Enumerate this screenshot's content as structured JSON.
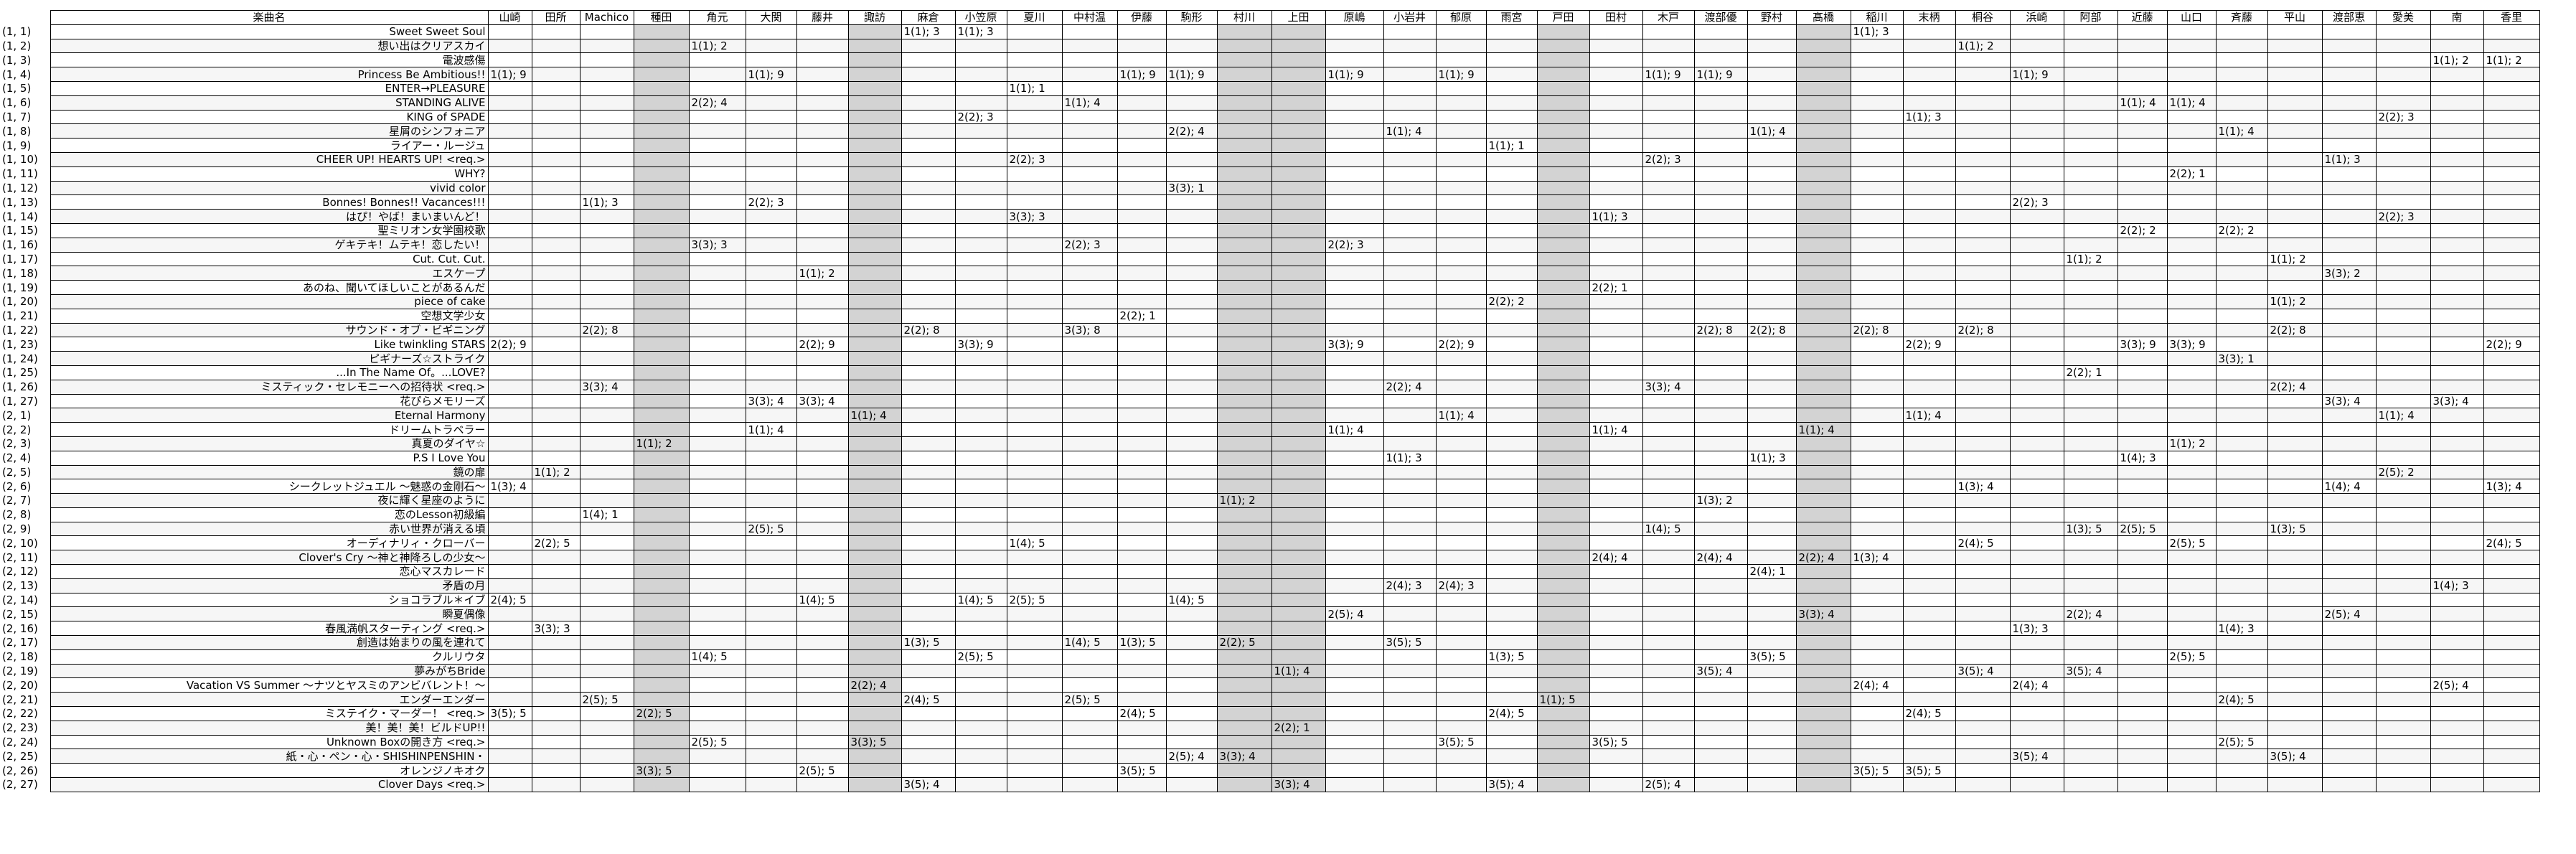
{
  "table": {
    "song_header": "楽曲名",
    "columns": [
      "山崎",
      "田所",
      "Machico",
      "種田",
      "角元",
      "大関",
      "藤井",
      "諏訪",
      "麻倉",
      "小笠原",
      "夏川",
      "中村温",
      "伊藤",
      "駒形",
      "村川",
      "上田",
      "原嶋",
      "小岩井",
      "郁原",
      "雨宮",
      "戸田",
      "田村",
      "木戸",
      "渡部優",
      "野村",
      "髙橋",
      "稲川",
      "末柄",
      "桐谷",
      "浜崎",
      "阿部",
      "近藤",
      "山口",
      "斉藤",
      "平山",
      "渡部恵",
      "愛美",
      "南",
      "香里"
    ],
    "shaded_columns": [
      3,
      7,
      14,
      15,
      20,
      25
    ],
    "rows": [
      {
        "idx": "(1, 1)",
        "song": "Sweet Sweet Soul",
        "v": {
          "8": "1(1); 3",
          "9": "1(1); 3",
          "26": "1(1); 3"
        }
      },
      {
        "idx": "(1, 2)",
        "song": "想い出はクリアスカイ",
        "v": {
          "4": "1(1); 2",
          "28": "1(1); 2"
        }
      },
      {
        "idx": "(1, 3)",
        "song": "電波感傷",
        "v": {
          "37": "1(1); 2",
          "38": "1(1); 2"
        }
      },
      {
        "idx": "(1, 4)",
        "song": "Princess Be Ambitious!!",
        "v": {
          "0": "1(1); 9",
          "5": "1(1); 9",
          "12": "1(1); 9",
          "13": "1(1); 9",
          "16": "1(1); 9",
          "18": "1(1); 9",
          "22": "1(1); 9",
          "23": "1(1); 9",
          "29": "1(1); 9"
        }
      },
      {
        "idx": "(1, 5)",
        "song": "ENTER→PLEASURE",
        "v": {
          "10": "1(1); 1"
        }
      },
      {
        "idx": "(1, 6)",
        "song": "STANDING ALIVE",
        "v": {
          "4": "2(2); 4",
          "11": "1(1); 4",
          "31": "1(1); 4",
          "32": "1(1); 4"
        }
      },
      {
        "idx": "(1, 7)",
        "song": "KING of SPADE",
        "v": {
          "9": "2(2); 3",
          "27": "1(1); 3",
          "36": "2(2); 3"
        }
      },
      {
        "idx": "(1, 8)",
        "song": "星屑のシンフォニア",
        "v": {
          "13": "2(2); 4",
          "17": "1(1); 4",
          "24": "1(1); 4",
          "33": "1(1); 4"
        }
      },
      {
        "idx": "(1, 9)",
        "song": "ライアー・ルージュ",
        "v": {
          "19": "1(1); 1"
        }
      },
      {
        "idx": "(1, 10)",
        "song": "CHEER UP! HEARTS UP! <req.>",
        "v": {
          "10": "2(2); 3",
          "22": "2(2); 3",
          "35": "1(1); 3"
        }
      },
      {
        "idx": "(1, 11)",
        "song": "WHY?",
        "v": {
          "32": "2(2); 1"
        }
      },
      {
        "idx": "(1, 12)",
        "song": "vivid color",
        "v": {
          "13": "3(3); 1"
        }
      },
      {
        "idx": "(1, 13)",
        "song": "Bonnes! Bonnes!! Vacances!!!",
        "v": {
          "2": "1(1); 3",
          "5": "2(2); 3",
          "29": "2(2); 3"
        }
      },
      {
        "idx": "(1, 14)",
        "song": "はぴ！やば！まいまいんど！",
        "v": {
          "10": "3(3); 3",
          "21": "1(1); 3",
          "36": "2(2); 3"
        }
      },
      {
        "idx": "(1, 15)",
        "song": "聖ミリオン女学園校歌",
        "v": {
          "31": "2(2); 2",
          "33": "2(2); 2"
        }
      },
      {
        "idx": "(1, 16)",
        "song": "ゲキテキ！ムテキ！恋したい！",
        "v": {
          "4": "3(3); 3",
          "11": "2(2); 3",
          "16": "2(2); 3"
        }
      },
      {
        "idx": "(1, 17)",
        "song": "Cut. Cut. Cut.",
        "v": {
          "30": "1(1); 2",
          "34": "1(1); 2"
        }
      },
      {
        "idx": "(1, 18)",
        "song": "エスケープ",
        "v": {
          "6": "1(1); 2",
          "35": "3(3); 2"
        }
      },
      {
        "idx": "(1, 19)",
        "song": "あのね、聞いてほしいことがあるんだ",
        "v": {
          "21": "2(2); 1"
        }
      },
      {
        "idx": "(1, 20)",
        "song": "piece of cake",
        "v": {
          "19": "2(2); 2",
          "34": "1(1); 2"
        }
      },
      {
        "idx": "(1, 21)",
        "song": "空想文学少女",
        "v": {
          "12": "2(2); 1"
        }
      },
      {
        "idx": "(1, 22)",
        "song": "サウンド・オブ・ビギニング",
        "v": {
          "2": "2(2); 8",
          "8": "2(2); 8",
          "11": "3(3); 8",
          "23": "2(2); 8",
          "24": "2(2); 8",
          "26": "2(2); 8",
          "28": "2(2); 8",
          "34": "2(2); 8"
        }
      },
      {
        "idx": "(1, 23)",
        "song": "Like twinkling STARS",
        "v": {
          "0": "2(2); 9",
          "6": "2(2); 9",
          "9": "3(3); 9",
          "16": "3(3); 9",
          "18": "2(2); 9",
          "27": "2(2); 9",
          "31": "3(3); 9",
          "32": "3(3); 9",
          "38": "2(2); 9"
        }
      },
      {
        "idx": "(1, 24)",
        "song": "ピギナーズ☆ストライク",
        "v": {
          "33": "3(3); 1"
        }
      },
      {
        "idx": "(1, 25)",
        "song": "...In The Name Of。...LOVE?",
        "v": {
          "30": "2(2); 1"
        }
      },
      {
        "idx": "(1, 26)",
        "song": "ミスティック・セレモニーへの招待状 <req.>",
        "v": {
          "2": "3(3); 4",
          "17": "2(2); 4",
          "22": "3(3); 4",
          "34": "2(2); 4"
        }
      },
      {
        "idx": "(1, 27)",
        "song": "花ぴらメモリーズ",
        "v": {
          "5": "3(3); 4",
          "6": "3(3); 4",
          "35": "3(3); 4",
          "37": "3(3); 4"
        }
      },
      {
        "idx": "(2, 1)",
        "song": "Eternal Harmony",
        "v": {
          "7": "1(1); 4",
          "18": "1(1); 4",
          "27": "1(1); 4",
          "36": "1(1); 4"
        }
      },
      {
        "idx": "(2, 2)",
        "song": "ドリームトラベラー",
        "v": {
          "5": "1(1); 4",
          "16": "1(1); 4",
          "21": "1(1); 4",
          "25": "1(1); 4"
        }
      },
      {
        "idx": "(2, 3)",
        "song": "真夏のダイヤ☆",
        "v": {
          "3": "1(1); 2",
          "32": "1(1); 2"
        }
      },
      {
        "idx": "(2, 4)",
        "song": "P.S I Love You",
        "v": {
          "17": "1(1); 3",
          "24": "1(1); 3",
          "31": "1(4); 3"
        }
      },
      {
        "idx": "(2, 5)",
        "song": "鏡の扉",
        "v": {
          "1": "1(1); 2",
          "36": "2(5); 2"
        }
      },
      {
        "idx": "(2, 6)",
        "song": "シークレットジュエル 〜魅惑の金剛石〜",
        "v": {
          "0": "1(3); 4",
          "28": "1(3); 4",
          "35": "1(4); 4",
          "38": "1(3); 4"
        }
      },
      {
        "idx": "(2, 7)",
        "song": "夜に輝く星座のように",
        "v": {
          "14": "1(1); 2",
          "23": "1(3); 2"
        }
      },
      {
        "idx": "(2, 8)",
        "song": "恋のLesson初級編",
        "v": {
          "2": "1(4); 1"
        }
      },
      {
        "idx": "(2, 9)",
        "song": "赤い世界が消える頃",
        "v": {
          "5": "2(5); 5",
          "22": "1(4); 5",
          "30": "1(3); 5",
          "31": "2(5); 5",
          "34": "1(3); 5"
        }
      },
      {
        "idx": "(2, 10)",
        "song": "オーディナリィ・クローバー",
        "v": {
          "1": "2(2); 5",
          "10": "1(4); 5",
          "28": "2(4); 5",
          "32": "2(5); 5",
          "38": "2(4); 5"
        }
      },
      {
        "idx": "(2, 11)",
        "song": "Clover's Cry 〜神と神降ろしの少女〜",
        "v": {
          "21": "2(4); 4",
          "23": "2(4); 4",
          "25": "2(2); 4",
          "26": "1(3); 4"
        }
      },
      {
        "idx": "(2, 12)",
        "song": "恋心マスカレード",
        "v": {
          "24": "2(4); 1"
        }
      },
      {
        "idx": "(2, 13)",
        "song": "矛盾の月",
        "v": {
          "17": "2(4); 3",
          "18": "2(4); 3",
          "37": "1(4); 3"
        }
      },
      {
        "idx": "(2, 14)",
        "song": "ショコラブル＊イブ",
        "v": {
          "0": "2(4); 5",
          "6": "1(4); 5",
          "9": "1(4); 5",
          "10": "2(5); 5",
          "13": "1(4); 5"
        }
      },
      {
        "idx": "(2, 15)",
        "song": "瞬夏偶像",
        "v": {
          "16": "2(5); 4",
          "25": "3(3); 4",
          "30": "2(2); 4",
          "35": "2(5); 4"
        }
      },
      {
        "idx": "(2, 16)",
        "song": "春風満帆スターティング <req.>",
        "v": {
          "1": "3(3); 3",
          "29": "1(3); 3",
          "33": "1(4); 3"
        }
      },
      {
        "idx": "(2, 17)",
        "song": "創造は始まりの風を連れて",
        "v": {
          "8": "1(3); 5",
          "11": "1(4); 5",
          "12": "1(3); 5",
          "14": "2(2); 5",
          "17": "3(5); 5"
        }
      },
      {
        "idx": "(2, 18)",
        "song": "クルリウタ",
        "v": {
          "4": "1(4); 5",
          "9": "2(5); 5",
          "19": "1(3); 5",
          "24": "3(5); 5",
          "32": "2(5); 5"
        }
      },
      {
        "idx": "(2, 19)",
        "song": "夢みがちBride",
        "v": {
          "15": "1(1); 4",
          "23": "3(5); 4",
          "28": "3(5); 4",
          "30": "3(5); 4"
        }
      },
      {
        "idx": "(2, 20)",
        "song": "Vacation VS Summer 〜ナツとヤスミのアンビバレント！〜",
        "v": {
          "7": "2(2); 4",
          "26": "2(4); 4",
          "29": "2(4); 4",
          "37": "2(5); 4"
        }
      },
      {
        "idx": "(2, 21)",
        "song": "エンダーエンダー",
        "v": {
          "2": "2(5); 5",
          "8": "2(4); 5",
          "11": "2(5); 5",
          "20": "1(1); 5",
          "33": "2(4); 5"
        }
      },
      {
        "idx": "(2, 22)",
        "song": "ミステイク・マーダー！ <req.>",
        "v": {
          "0": "3(5); 5",
          "3": "2(2); 5",
          "12": "2(4); 5",
          "19": "2(4); 5",
          "27": "2(4); 5"
        }
      },
      {
        "idx": "(2, 23)",
        "song": "美！美！美！ビルドUP!!",
        "v": {
          "15": "2(2); 1"
        }
      },
      {
        "idx": "(2, 24)",
        "song": "Unknown Boxの開き方 <req.>",
        "v": {
          "4": "2(5); 5",
          "7": "3(3); 5",
          "18": "3(5); 5",
          "21": "3(5); 5",
          "33": "2(5); 5"
        }
      },
      {
        "idx": "(2, 25)",
        "song": "紙・心・ペン・心・SHISHINPENSHIN・",
        "v": {
          "13": "2(5); 4",
          "14": "3(3); 4",
          "29": "3(5); 4",
          "34": "3(5); 4"
        }
      },
      {
        "idx": "(2, 26)",
        "song": "オレンジノキオク",
        "v": {
          "3": "3(3); 5",
          "6": "2(5); 5",
          "12": "3(5); 5",
          "26": "3(5); 5",
          "27": "3(5); 5"
        }
      },
      {
        "idx": "(2, 27)",
        "song": "Clover Days <req.>",
        "v": {
          "8": "3(5); 4",
          "15": "3(3); 4",
          "19": "3(5); 4",
          "22": "2(5); 4"
        }
      }
    ]
  }
}
